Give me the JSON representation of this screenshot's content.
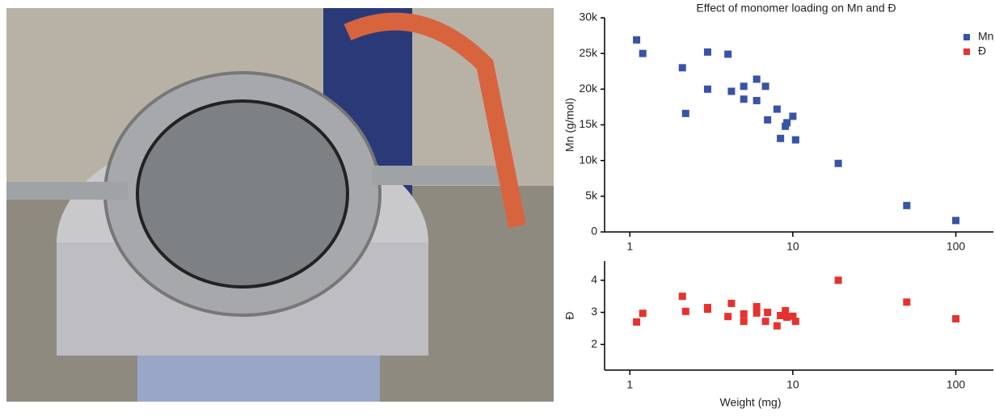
{
  "chart_data": [
    {
      "type": "scatter",
      "title": "Effect of monomer loading on Mn and Đ",
      "y_label": "Mn (g/mol)",
      "x_log": true,
      "legend": "top-right",
      "xlim": [
        0.7,
        170
      ],
      "xticks": [
        1,
        10,
        100
      ],
      "ylim": [
        0,
        30000
      ],
      "yticks": [
        0,
        {
          "value": 5000,
          "label": "5k"
        },
        {
          "value": 10000,
          "label": "10k"
        },
        {
          "value": 15000,
          "label": "15k"
        },
        {
          "value": 20000,
          "label": "20k"
        },
        {
          "value": 25000,
          "label": "25k"
        },
        {
          "value": 30000,
          "label": "30k"
        }
      ],
      "series": [
        {
          "name": "Mn",
          "color": "#3953a6",
          "x": [
            1.1,
            1.2,
            2.1,
            2.2,
            3,
            3,
            4,
            4.2,
            5,
            5,
            6,
            6,
            6.8,
            7,
            8,
            8.4,
            9,
            9.2,
            10,
            10.4,
            19,
            50,
            100
          ],
          "values": [
            26900,
            25000,
            23000,
            16600,
            25200,
            20000,
            24900,
            19700,
            20400,
            18600,
            21400,
            18400,
            20400,
            15700,
            17200,
            13100,
            14800,
            15300,
            16200,
            12900,
            9600,
            3700,
            1600
          ]
        }
      ]
    },
    {
      "type": "scatter",
      "y_label": "Đ",
      "x_label": "Weight (mg)",
      "x_log": true,
      "xlim": [
        0.7,
        170
      ],
      "xticks": [
        1,
        10,
        100
      ],
      "ylim": [
        1.2,
        4.6
      ],
      "yticks": [
        2,
        3,
        4
      ],
      "series": [
        {
          "name": "Đ",
          "color": "#e8312e",
          "x": [
            1.1,
            1.2,
            2.1,
            2.2,
            3,
            3,
            4,
            4.2,
            5,
            5,
            6,
            6,
            6.8,
            7,
            8,
            8.4,
            9,
            9.2,
            10,
            10.4,
            19,
            50,
            100
          ],
          "values": [
            2.7,
            2.97,
            3.5,
            3.03,
            3.15,
            3.1,
            2.87,
            3.28,
            2.95,
            2.72,
            3.18,
            2.98,
            2.72,
            3.0,
            2.58,
            2.9,
            3.05,
            2.85,
            2.88,
            2.72,
            4.0,
            3.32,
            2.8
          ]
        }
      ]
    }
  ]
}
